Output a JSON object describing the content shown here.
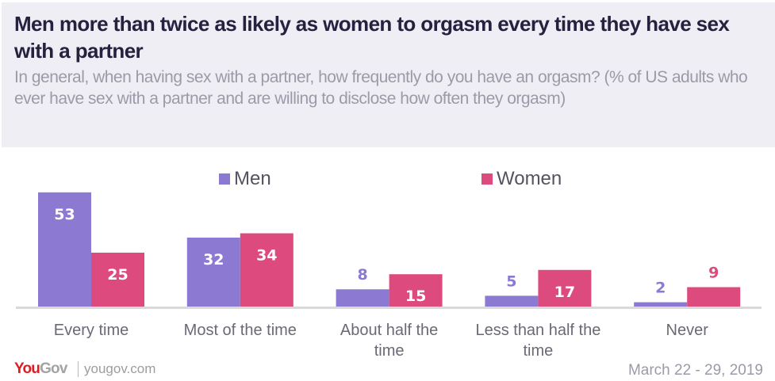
{
  "header": {
    "title": "Men more than twice as likely as women to orgasm every time they have sex with a partner",
    "subtitle": "In general, when having sex with a partner, how frequently do you have an orgasm? (% of US adults who ever have sex with a partner and are willing to disclose how often they orgasm)"
  },
  "colors": {
    "men": "#8c79d1",
    "women": "#dd4b7e",
    "header_bg": "#efeef5",
    "axis": "#d9d9d9"
  },
  "chart_data": {
    "type": "bar",
    "title": "Men more than twice as likely as women to orgasm every time they have sex with a partner",
    "xlabel": "",
    "ylabel": "",
    "ylim": [
      0,
      55
    ],
    "grid": false,
    "legend_position": "top",
    "categories": [
      "Every time",
      "Most of the time",
      "About half the time",
      "Less than half the time",
      "Never"
    ],
    "category_lines": [
      [
        "Every time"
      ],
      [
        "Most of the time"
      ],
      [
        "About half the",
        "time"
      ],
      [
        "Less than half the",
        "time"
      ],
      [
        "Never"
      ]
    ],
    "series": [
      {
        "name": "Men",
        "values": [
          53,
          32,
          8,
          5,
          2
        ]
      },
      {
        "name": "Women",
        "values": [
          25,
          34,
          15,
          17,
          9
        ]
      }
    ]
  },
  "footer": {
    "logo_you": "You",
    "logo_gov": "Gov",
    "url": "yougov.com",
    "date": "March 22 - 29, 2019"
  }
}
